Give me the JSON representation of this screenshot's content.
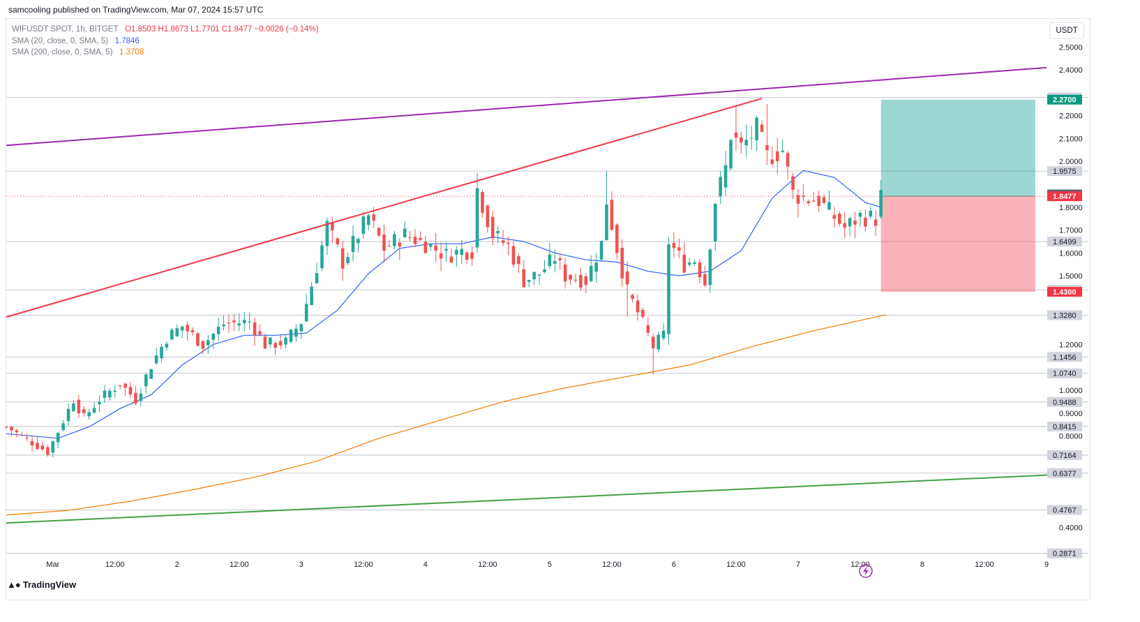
{
  "header": {
    "published": "samcooling published on TradingView.com, Mar 07, 2024 15:57 UTC"
  },
  "legend": {
    "symbol": "WIFUSDT SPOT, 1h, BITGET",
    "ohlc": "O1.8503  H1.8673  L1.7701  C1.8477  −0.0026 (−0.14%)",
    "sma20_label": "SMA (20, close, 0, SMA, 5)",
    "sma20_value": "1.7846",
    "sma200_label": "SMA (200, close, 0, SMA, 5)",
    "sma200_value": "1.3708"
  },
  "currency": "USDT",
  "footer": {
    "brand": "TradingView"
  },
  "colors": {
    "up": "#26a69a",
    "down": "#ef5350",
    "sma20": "#2962ff",
    "sma200": "#f57c00",
    "wedge_upper": "#9c27b0",
    "trend_red": "#f23645",
    "trend_green": "#43a047",
    "target_zone": "#26a69a",
    "stop_zone": "#f23645"
  },
  "chart_data": {
    "type": "candlestick",
    "symbol": "WIFUSDT",
    "timeframe": "1h",
    "x_start": "2024-02-29T15:00",
    "x_end": "2024-03-09T00:00",
    "ylim": [
      0.28,
      2.62
    ],
    "y_ticks": [
      "2.5000",
      "2.4000",
      "2.2000",
      "2.1000",
      "2.0000",
      "1.8000",
      "1.7000",
      "1.6000",
      "1.5000",
      "1.2000",
      "1.0000",
      "0.9000",
      "0.8000",
      "0.4000"
    ],
    "x_ticks": [
      {
        "t": "2024-03-01T00:00",
        "label": "Mar"
      },
      {
        "t": "2024-03-01T12:00",
        "label": "12:00"
      },
      {
        "t": "2024-03-02T00:00",
        "label": "2"
      },
      {
        "t": "2024-03-02T12:00",
        "label": "12:00"
      },
      {
        "t": "2024-03-03T00:00",
        "label": "3"
      },
      {
        "t": "2024-03-03T12:00",
        "label": "12:00"
      },
      {
        "t": "2024-03-04T00:00",
        "label": "4"
      },
      {
        "t": "2024-03-04T12:00",
        "label": "12:00"
      },
      {
        "t": "2024-03-05T00:00",
        "label": "5"
      },
      {
        "t": "2024-03-05T12:00",
        "label": "12:00"
      },
      {
        "t": "2024-03-06T00:00",
        "label": "6"
      },
      {
        "t": "2024-03-06T12:00",
        "label": "12:00"
      },
      {
        "t": "2024-03-07T00:00",
        "label": "7"
      },
      {
        "t": "2024-03-07T12:00",
        "label": "12:00"
      },
      {
        "t": "2024-03-08T00:00",
        "label": "8"
      },
      {
        "t": "2024-03-08T12:00",
        "label": "12:00"
      },
      {
        "t": "2024-03-09T00:00",
        "label": "9"
      }
    ],
    "price_path": [
      {
        "t": "2024-02-29T15:00",
        "p": 0.84
      },
      {
        "t": "2024-02-29T23:00",
        "p": 0.73
      },
      {
        "t": "2024-03-01T01:00",
        "p": 0.82
      },
      {
        "t": "2024-03-01T04:00",
        "p": 0.96
      },
      {
        "t": "2024-03-01T06:00",
        "p": 0.88
      },
      {
        "t": "2024-03-01T09:00",
        "p": 0.96
      },
      {
        "t": "2024-03-01T13:00",
        "p": 1.03
      },
      {
        "t": "2024-03-01T16:00",
        "p": 0.96
      },
      {
        "t": "2024-03-01T19:00",
        "p": 1.11
      },
      {
        "t": "2024-03-01T22:00",
        "p": 1.23
      },
      {
        "t": "2024-03-02T01:00",
        "p": 1.28
      },
      {
        "t": "2024-03-02T05:00",
        "p": 1.2
      },
      {
        "t": "2024-03-02T09:00",
        "p": 1.29
      },
      {
        "t": "2024-03-02T14:00",
        "p": 1.3
      },
      {
        "t": "2024-03-02T17:00",
        "p": 1.2
      },
      {
        "t": "2024-03-02T21:00",
        "p": 1.21
      },
      {
        "t": "2024-03-03T00:00",
        "p": 1.3
      },
      {
        "t": "2024-03-03T03:00",
        "p": 1.54
      },
      {
        "t": "2024-03-03T05:00",
        "p": 1.72
      },
      {
        "t": "2024-03-03T08:00",
        "p": 1.56
      },
      {
        "t": "2024-03-03T13:00",
        "p": 1.76
      },
      {
        "t": "2024-03-03T16:00",
        "p": 1.62
      },
      {
        "t": "2024-03-03T20:00",
        "p": 1.68
      },
      {
        "t": "2024-03-04T00:00",
        "p": 1.64
      },
      {
        "t": "2024-03-04T04:00",
        "p": 1.59
      },
      {
        "t": "2024-03-04T07:00",
        "p": 1.61
      },
      {
        "t": "2024-03-04T09:00",
        "p": 1.61
      },
      {
        "t": "2024-03-04T10:00",
        "p": 1.88
      },
      {
        "t": "2024-03-04T13:00",
        "p": 1.68
      },
      {
        "t": "2024-03-04T16:00",
        "p": 1.63
      },
      {
        "t": "2024-03-04T19:00",
        "p": 1.48
      },
      {
        "t": "2024-03-04T22:00",
        "p": 1.51
      },
      {
        "t": "2024-03-05T01:00",
        "p": 1.58
      },
      {
        "t": "2024-03-05T03:00",
        "p": 1.5
      },
      {
        "t": "2024-03-05T07:00",
        "p": 1.48
      },
      {
        "t": "2024-03-05T10:00",
        "p": 1.64
      },
      {
        "t": "2024-03-05T11:00",
        "p": 1.83
      },
      {
        "t": "2024-03-05T13:00",
        "p": 1.62
      },
      {
        "t": "2024-03-05T15:00",
        "p": 1.43
      },
      {
        "t": "2024-03-05T17:00",
        "p": 1.34
      },
      {
        "t": "2024-03-05T20:00",
        "p": 1.19
      },
      {
        "t": "2024-03-05T22:00",
        "p": 1.24
      },
      {
        "t": "2024-03-05T23:00",
        "p": 1.65
      },
      {
        "t": "2024-03-06T02:00",
        "p": 1.55
      },
      {
        "t": "2024-03-06T04:00",
        "p": 1.57
      },
      {
        "t": "2024-03-06T06:00",
        "p": 1.47
      },
      {
        "t": "2024-03-06T08:00",
        "p": 1.83
      },
      {
        "t": "2024-03-06T10:00",
        "p": 1.97
      },
      {
        "t": "2024-03-06T11:00",
        "p": 2.12
      },
      {
        "t": "2024-03-06T13:00",
        "p": 2.06
      },
      {
        "t": "2024-03-06T16:00",
        "p": 2.14
      },
      {
        "t": "2024-03-06T18:00",
        "p": 2.02
      },
      {
        "t": "2024-03-06T21:00",
        "p": 2.05
      },
      {
        "t": "2024-03-06T23:00",
        "p": 1.86
      },
      {
        "t": "2024-03-07T01:00",
        "p": 1.84
      },
      {
        "t": "2024-03-07T04:00",
        "p": 1.83
      },
      {
        "t": "2024-03-07T06:00",
        "p": 1.78
      },
      {
        "t": "2024-03-07T09:00",
        "p": 1.71
      },
      {
        "t": "2024-03-07T12:00",
        "p": 1.76
      },
      {
        "t": "2024-03-07T15:00",
        "p": 1.75
      },
      {
        "t": "2024-03-07T16:00",
        "p": 1.85
      }
    ],
    "lows": [
      {
        "t": "2024-02-29T23:00",
        "p": 0.71
      },
      {
        "t": "2024-03-05T20:00",
        "p": 1.07
      },
      {
        "t": "2024-03-05T15:00",
        "p": 1.32
      }
    ],
    "highs": [
      {
        "t": "2024-03-06T12:00",
        "p": 2.24
      },
      {
        "t": "2024-03-06T18:00",
        "p": 2.25
      },
      {
        "t": "2024-03-04T10:00",
        "p": 1.95
      },
      {
        "t": "2024-03-05T11:00",
        "p": 1.96
      }
    ],
    "sma20_path": [
      {
        "t": "2024-02-29T15:00",
        "p": 0.81
      },
      {
        "t": "2024-03-01T01:00",
        "p": 0.79
      },
      {
        "t": "2024-03-01T07:00",
        "p": 0.84
      },
      {
        "t": "2024-03-01T13:00",
        "p": 0.92
      },
      {
        "t": "2024-03-01T19:00",
        "p": 0.98
      },
      {
        "t": "2024-03-02T01:00",
        "p": 1.11
      },
      {
        "t": "2024-03-02T07:00",
        "p": 1.2
      },
      {
        "t": "2024-03-02T13:00",
        "p": 1.24
      },
      {
        "t": "2024-03-02T19:00",
        "p": 1.24
      },
      {
        "t": "2024-03-03T01:00",
        "p": 1.25
      },
      {
        "t": "2024-03-03T07:00",
        "p": 1.35
      },
      {
        "t": "2024-03-03T13:00",
        "p": 1.51
      },
      {
        "t": "2024-03-03T19:00",
        "p": 1.62
      },
      {
        "t": "2024-03-04T01:00",
        "p": 1.64
      },
      {
        "t": "2024-03-04T07:00",
        "p": 1.64
      },
      {
        "t": "2024-03-04T13:00",
        "p": 1.67
      },
      {
        "t": "2024-03-04T19:00",
        "p": 1.65
      },
      {
        "t": "2024-03-05T01:00",
        "p": 1.6
      },
      {
        "t": "2024-03-05T07:00",
        "p": 1.57
      },
      {
        "t": "2024-03-05T13:00",
        "p": 1.56
      },
      {
        "t": "2024-03-05T19:00",
        "p": 1.52
      },
      {
        "t": "2024-03-06T01:00",
        "p": 1.5
      },
      {
        "t": "2024-03-06T07:00",
        "p": 1.52
      },
      {
        "t": "2024-03-06T13:00",
        "p": 1.61
      },
      {
        "t": "2024-03-06T19:00",
        "p": 1.84
      },
      {
        "t": "2024-03-07T01:00",
        "p": 1.96
      },
      {
        "t": "2024-03-07T07:00",
        "p": 1.93
      },
      {
        "t": "2024-03-07T13:00",
        "p": 1.82
      },
      {
        "t": "2024-03-07T16:00",
        "p": 1.8
      }
    ],
    "sma200_path": [
      {
        "t": "2024-02-29T15:00",
        "p": 0.455
      },
      {
        "t": "2024-03-01T03:00",
        "p": 0.475
      },
      {
        "t": "2024-03-01T15:00",
        "p": 0.515
      },
      {
        "t": "2024-03-02T03:00",
        "p": 0.565
      },
      {
        "t": "2024-03-02T15:00",
        "p": 0.62
      },
      {
        "t": "2024-03-03T03:00",
        "p": 0.69
      },
      {
        "t": "2024-03-03T15:00",
        "p": 0.79
      },
      {
        "t": "2024-03-04T03:00",
        "p": 0.87
      },
      {
        "t": "2024-03-04T15:00",
        "p": 0.95
      },
      {
        "t": "2024-03-05T03:00",
        "p": 1.01
      },
      {
        "t": "2024-03-05T15:00",
        "p": 1.06
      },
      {
        "t": "2024-03-06T03:00",
        "p": 1.11
      },
      {
        "t": "2024-03-06T15:00",
        "p": 1.19
      },
      {
        "t": "2024-03-07T03:00",
        "p": 1.26
      },
      {
        "t": "2024-03-07T17:00",
        "p": 1.33
      }
    ],
    "trendlines": [
      {
        "name": "wedge-upper",
        "color": "#9c27b0",
        "from": {
          "t": "2024-02-29T15:00",
          "p": 2.07
        },
        "to": {
          "t": "2024-03-09T00:00",
          "p": 2.41
        }
      },
      {
        "name": "rising-resistance",
        "color": "#f23645",
        "from": {
          "t": "2024-02-29T15:00",
          "p": 1.32
        },
        "to": {
          "t": "2024-03-06T17:00",
          "p": 2.275
        }
      },
      {
        "name": "long-term-support",
        "color": "#43a047",
        "from": {
          "t": "2024-02-29T15:00",
          "p": 0.42
        },
        "to": {
          "t": "2024-03-09T01:00",
          "p": 0.63
        }
      }
    ],
    "horizontal_levels": [
      "2.2794",
      "1.9575",
      "1.6499",
      "1.4389",
      "1.3280",
      "1.1456",
      "1.0740",
      "0.9488",
      "0.8415",
      "0.7164",
      "0.6377",
      "0.4767",
      "0.2871"
    ],
    "position": {
      "type": "long",
      "from": "2024-03-07T16:00",
      "to": "2024-03-09T00:00",
      "entry": 1.8477,
      "target": 2.27,
      "stop": 1.43
    },
    "price_tags": [
      {
        "value": "2.2700",
        "role": "target"
      },
      {
        "value": "1.8557",
        "role": "current"
      },
      {
        "value": "1.8477",
        "role": "close"
      },
      {
        "value": "1.4300",
        "role": "stop"
      }
    ],
    "grid": false
  }
}
